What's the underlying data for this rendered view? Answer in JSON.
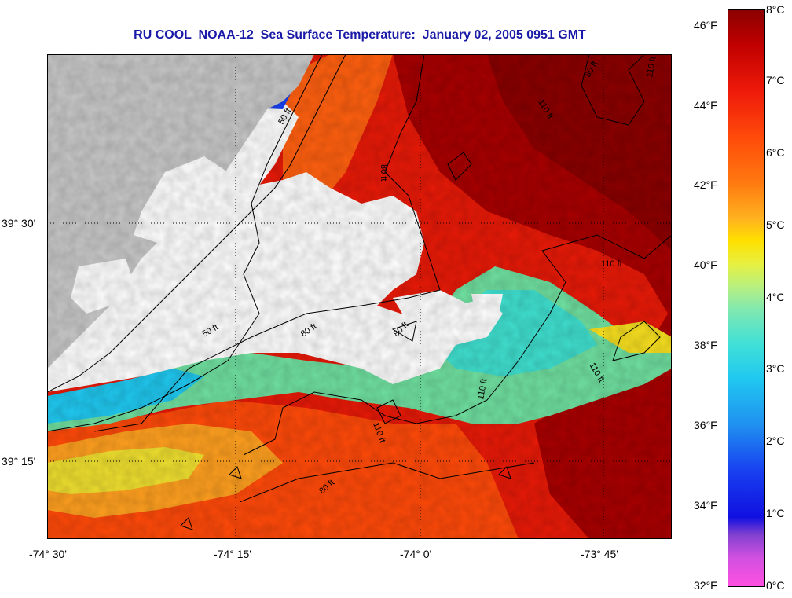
{
  "title": "RU COOL  NOAA-12  Sea Surface Temperature:  January 02, 2005 0951 GMT",
  "map": {
    "latitude_labels": [
      "39° 30'",
      "39° 15'"
    ],
    "longitude_labels": [
      "-74° 30'",
      "-74° 15'",
      "-74° 0'",
      "-73° 45'"
    ],
    "isobath_labels": [
      "50 ft",
      "80 ft",
      "110 ft"
    ],
    "colors": {
      "land": "#c8c8c8",
      "cloud_masked": "#ffffff",
      "contour": "#000000"
    }
  },
  "colorbar": {
    "fahrenheit_labels": [
      "46°F",
      "44°F",
      "42°F",
      "40°F",
      "38°F",
      "36°F",
      "34°F",
      "32°F"
    ],
    "celsius_labels": [
      "8°C",
      "7°C",
      "6°C",
      "5°C",
      "4°C",
      "3°C",
      "2°C",
      "1°C",
      "0°C"
    ]
  }
}
